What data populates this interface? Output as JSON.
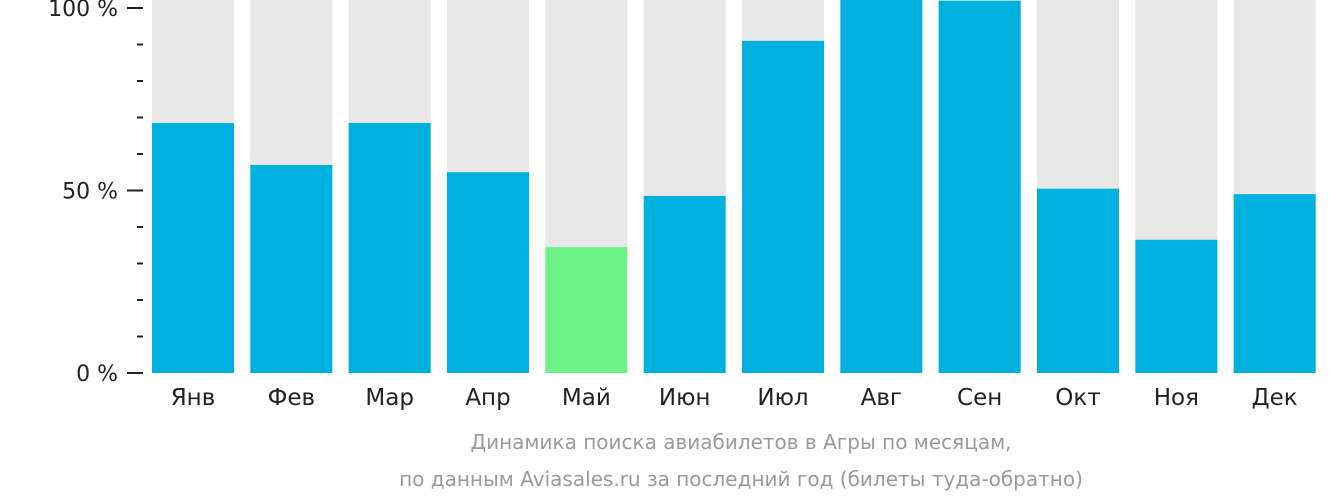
{
  "chart_data": {
    "type": "bar",
    "categories": [
      "Янв",
      "Фев",
      "Мар",
      "Апр",
      "Май",
      "Июн",
      "Июл",
      "Авг",
      "Сен",
      "Окт",
      "Ноя",
      "Дек"
    ],
    "values": [
      68.5,
      57,
      68.5,
      55,
      34.5,
      48.5,
      91,
      102.5,
      102,
      50.5,
      36.5,
      49
    ],
    "ylim": [
      0,
      100
    ],
    "yticks": [
      {
        "value": 0,
        "label": "0 %"
      },
      {
        "value": 50,
        "label": "50 %"
      },
      {
        "value": 100,
        "label": "100 %"
      }
    ],
    "minor_tick_step": 10,
    "grid": false,
    "background_bar": true,
    "highlight_index": 4,
    "colors": {
      "bar": "#00b0de",
      "highlight": "#6cf286",
      "background_bar": "#e8e8e8",
      "axis_text": "#222222"
    }
  },
  "caption": {
    "line1": "Динамика поиска авиабилетов в Агры по месяцам,",
    "line2": "по данным Aviasales.ru за последний год (билеты туда-обратно)"
  }
}
